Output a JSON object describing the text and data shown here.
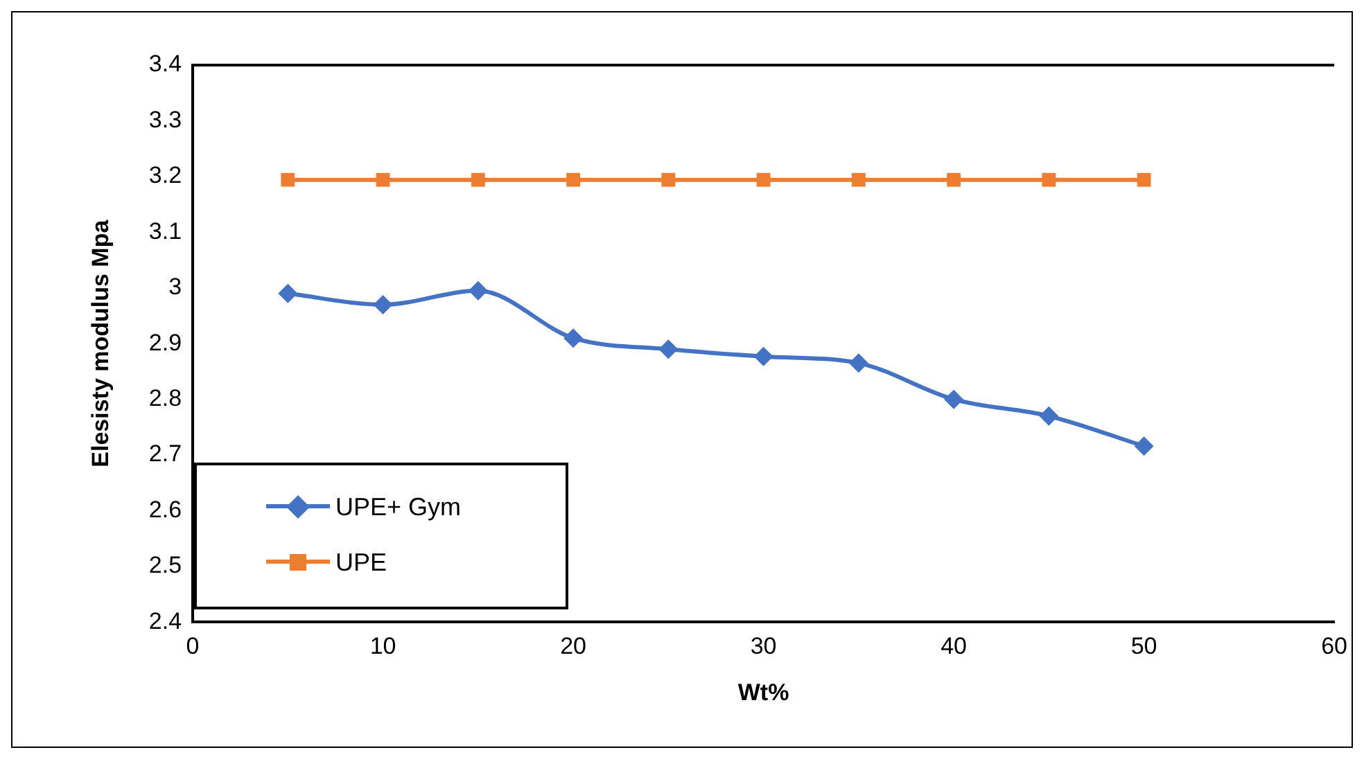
{
  "chart_data": {
    "type": "line",
    "xlabel": "Wt%",
    "ylabel": "Elesisty modulus Mpa",
    "xlim": [
      0,
      60
    ],
    "xticks": [
      0,
      10,
      20,
      30,
      40,
      50,
      60
    ],
    "ylim": [
      2.4,
      3.4
    ],
    "yticks": [
      2.4,
      2.5,
      2.6,
      2.7,
      2.8,
      2.9,
      3,
      3.1,
      3.2,
      3.3,
      3.4
    ],
    "x": [
      5,
      10,
      15,
      20,
      25,
      30,
      35,
      40,
      45,
      50
    ],
    "grid": false,
    "legend": "bottom left",
    "series": [
      {
        "name": "UPE+ Gym",
        "color": "#4472c4",
        "marker": "diamond",
        "values": [
          2.99,
          2.97,
          2.995,
          2.91,
          2.89,
          2.877,
          2.865,
          2.8,
          2.77,
          2.716
        ]
      },
      {
        "name": "UPE",
        "color": "#ed7d31",
        "marker": "square",
        "values": [
          3.194,
          3.194,
          3.194,
          3.194,
          3.194,
          3.194,
          3.194,
          3.194,
          3.194,
          3.194
        ]
      }
    ]
  }
}
